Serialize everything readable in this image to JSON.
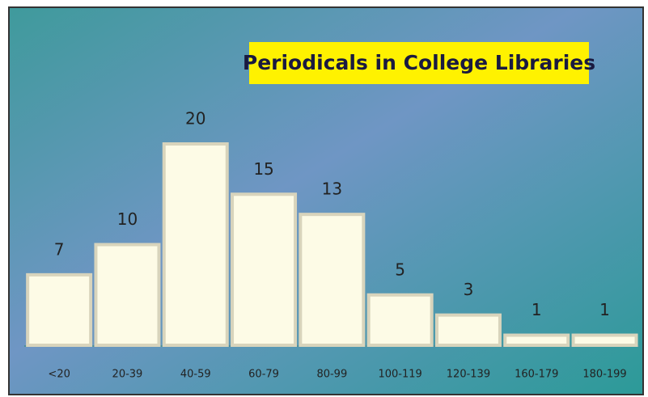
{
  "chart_data": {
    "type": "bar",
    "title": "Periodicals in College Libraries",
    "categories": [
      "<20",
      "20-39",
      "40-59",
      "60-79",
      "80-99",
      "100-119",
      "120-139",
      "160-179",
      "180-199"
    ],
    "values": [
      7,
      10,
      20,
      15,
      13,
      5,
      3,
      1,
      1
    ],
    "color": "#fdfbe6"
  }
}
